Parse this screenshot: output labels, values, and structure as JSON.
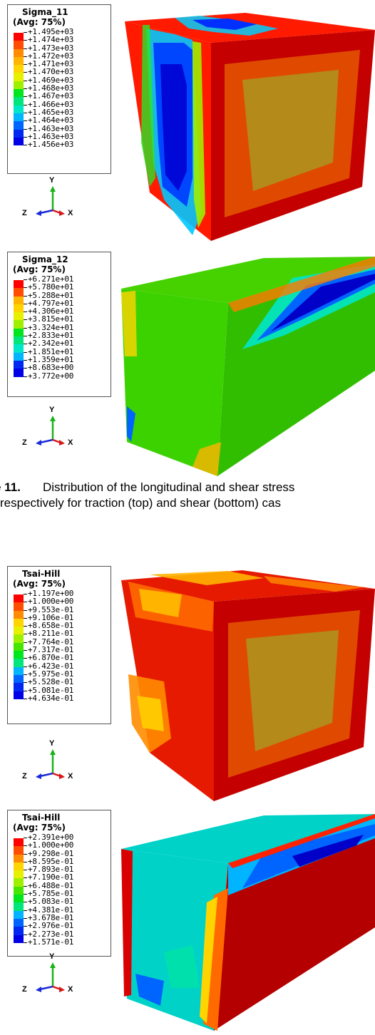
{
  "panels": [
    {
      "title": "Sigma_11",
      "avg": "(Avg: 75%)",
      "values": [
        "+1.495e+03",
        "+1.474e+03",
        "+1.473e+03",
        "+1.472e+03",
        "+1.471e+03",
        "+1.470e+03",
        "+1.469e+03",
        "+1.468e+03",
        "+1.467e+03",
        "+1.466e+03",
        "+1.465e+03",
        "+1.464e+03",
        "+1.463e+03",
        "+1.463e+03",
        "+1.456e+03"
      ]
    },
    {
      "title": "Sigma_12",
      "avg": "(Avg: 75%)",
      "values": [
        "+6.271e+01",
        "+5.780e+01",
        "+5.288e+01",
        "+4.797e+01",
        "+4.306e+01",
        "+3.815e+01",
        "+3.324e+01",
        "+2.833e+01",
        "+2.342e+01",
        "+1.851e+01",
        "+1.359e+01",
        "+8.683e+00",
        "+3.772e+00"
      ]
    },
    {
      "title": "Tsai-Hill",
      "avg": "(Avg: 75%)",
      "values": [
        "+1.197e+00",
        "+1.000e+00",
        "+9.553e-01",
        "+9.106e-01",
        "+8.658e-01",
        "+8.211e-01",
        "+7.764e-01",
        "+7.317e-01",
        "+6.870e-01",
        "+6.423e-01",
        "+5.975e-01",
        "+5.528e-01",
        "+5.081e-01",
        "+4.634e-01"
      ]
    },
    {
      "title": "Tsai-Hill",
      "avg": "(Avg: 75%)",
      "values": [
        "+2.391e+00",
        "+1.000e+00",
        "+9.298e-01",
        "+8.595e-01",
        "+7.893e-01",
        "+7.190e-01",
        "+6.488e-01",
        "+5.785e-01",
        "+5.083e-01",
        "+4.381e-01",
        "+3.678e-01",
        "+2.976e-01",
        "+2.273e-01",
        "+1.571e-01"
      ]
    }
  ],
  "axis_labels": {
    "y": "Y",
    "z": "Z",
    "x": "X"
  },
  "caption": {
    "label": "e 11.",
    "line1": "Distribution of the longitudinal and shear stress",
    "line2": "respectively for traction (top) and shear (bottom) cas"
  },
  "colors": {
    "scale": [
      "#ff0000",
      "#ff4c00",
      "#ff8c00",
      "#ffb400",
      "#ffd400",
      "#e6f000",
      "#9ef000",
      "#46e600",
      "#00e61e",
      "#00e67a",
      "#00e6c8",
      "#00b4ff",
      "#0064ff",
      "#0028f0",
      "#0000e6"
    ]
  }
}
